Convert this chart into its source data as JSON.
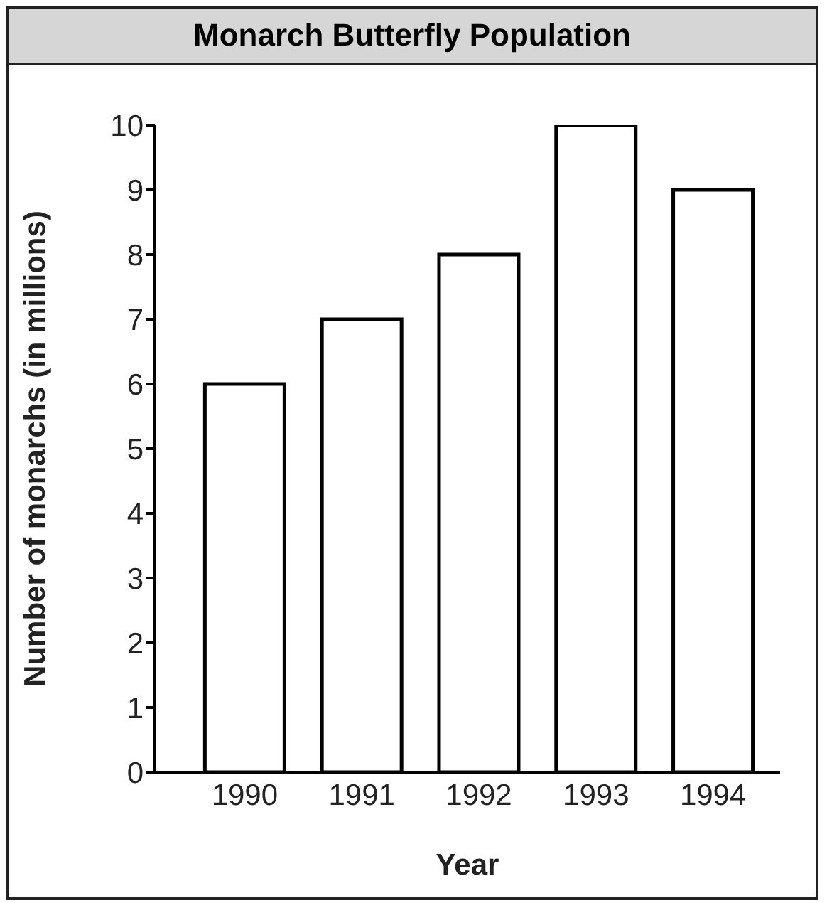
{
  "chart_data": {
    "type": "bar",
    "title": "Monarch Butterfly Population",
    "xlabel": "Year",
    "ylabel": "Number of monarchs (in millions)",
    "categories": [
      "1990",
      "1991",
      "1992",
      "1993",
      "1994"
    ],
    "series": [
      {
        "color": "#ffffff",
        "values": [
          6,
          7,
          8,
          10,
          9
        ]
      }
    ],
    "ylim": [
      0,
      10
    ],
    "yticks": [
      0,
      1,
      2,
      3,
      4,
      5,
      6,
      7,
      8,
      9,
      10
    ],
    "grid": false,
    "legend": false
  }
}
